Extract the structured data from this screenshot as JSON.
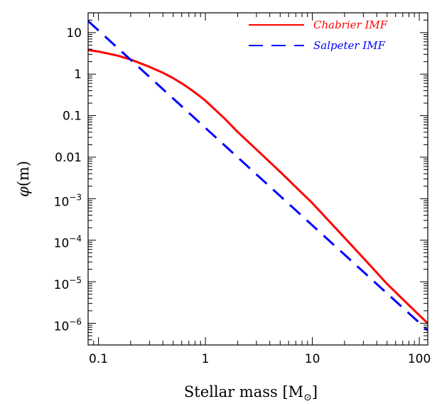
{
  "chart_data": {
    "type": "line",
    "xlabel": "Stellar mass [M",
    "xlabel_unit_symbol": "⊙",
    "xlabel_close": "]",
    "ylabel_symbol": "φ",
    "ylabel_arg": "(m)",
    "x_scale": "log",
    "y_scale": "log",
    "xlim": [
      0.08,
      120
    ],
    "ylim": [
      3e-07,
      30
    ],
    "grid": false,
    "legend_position": "top-right",
    "x_ticks": [
      {
        "value": 0.1,
        "label": "0.1"
      },
      {
        "value": 1,
        "label": "1"
      },
      {
        "value": 10,
        "label": "10"
      },
      {
        "value": 100,
        "label": "100"
      }
    ],
    "y_ticks": [
      {
        "value": 10,
        "base": "10",
        "exp": ""
      },
      {
        "value": 1,
        "base": "1",
        "exp": ""
      },
      {
        "value": 0.1,
        "base": "0.1",
        "exp": ""
      },
      {
        "value": 0.01,
        "base": "0.01",
        "exp": ""
      },
      {
        "value": 0.001,
        "base": "10",
        "exp": "−3"
      },
      {
        "value": 0.0001,
        "base": "10",
        "exp": "−4"
      },
      {
        "value": 1e-05,
        "base": "10",
        "exp": "−5"
      },
      {
        "value": 1e-06,
        "base": "10",
        "exp": "−6"
      }
    ],
    "series": [
      {
        "name": "Chabrier IMF",
        "color": "#ff0000",
        "dash": "solid",
        "x": [
          0.08,
          0.1,
          0.15,
          0.2,
          0.3,
          0.4,
          0.5,
          0.6,
          0.7,
          0.8,
          0.9,
          1.0,
          1.5,
          2,
          3,
          5,
          7,
          10,
          20,
          30,
          50,
          70,
          100,
          120
        ],
        "y": [
          3.8,
          3.5,
          2.8,
          2.25,
          1.5,
          1.08,
          0.8,
          0.6,
          0.46,
          0.36,
          0.285,
          0.23,
          0.0868,
          0.0406,
          0.0153,
          0.00443,
          0.00191,
          0.000782,
          0.000115,
          3.73e-05,
          8.84e-06,
          3.8e-06,
          1.56e-06,
          9.9e-07
        ]
      },
      {
        "name": "Salpeter IMF",
        "color": "#0000ff",
        "dash": "dashed",
        "x": [
          0.08,
          120
        ],
        "y": [
          19.0,
          6.7e-07
        ]
      }
    ]
  }
}
